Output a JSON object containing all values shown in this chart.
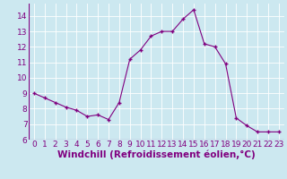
{
  "x": [
    0,
    1,
    2,
    3,
    4,
    5,
    6,
    7,
    8,
    9,
    10,
    11,
    12,
    13,
    14,
    15,
    16,
    17,
    18,
    19,
    20,
    21,
    22,
    23
  ],
  "y": [
    9.0,
    8.7,
    8.4,
    8.1,
    7.9,
    7.5,
    7.6,
    7.3,
    8.4,
    11.2,
    11.8,
    12.7,
    13.0,
    13.0,
    13.8,
    14.4,
    12.2,
    12.0,
    10.9,
    7.4,
    6.9,
    6.5,
    6.5,
    6.5
  ],
  "line_color": "#800080",
  "marker": "+",
  "marker_color": "#800080",
  "bg_color": "#cce8f0",
  "grid_color": "#ffffff",
  "xlabel": "Windchill (Refroidissement éolien,°C)",
  "xlabel_color": "#800080",
  "tick_color": "#800080",
  "xlim": [
    -0.5,
    23.5
  ],
  "ylim": [
    6,
    14.8
  ],
  "yticks": [
    6,
    7,
    8,
    9,
    10,
    11,
    12,
    13,
    14
  ],
  "xticks": [
    0,
    1,
    2,
    3,
    4,
    5,
    6,
    7,
    8,
    9,
    10,
    11,
    12,
    13,
    14,
    15,
    16,
    17,
    18,
    19,
    20,
    21,
    22,
    23
  ],
  "xtick_labels": [
    "0",
    "1",
    "2",
    "3",
    "4",
    "5",
    "6",
    "7",
    "8",
    "9",
    "10",
    "11",
    "12",
    "13",
    "14",
    "15",
    "16",
    "17",
    "18",
    "19",
    "20",
    "21",
    "22",
    "23"
  ],
  "font_size": 6.5,
  "xlabel_font_size": 7.5
}
